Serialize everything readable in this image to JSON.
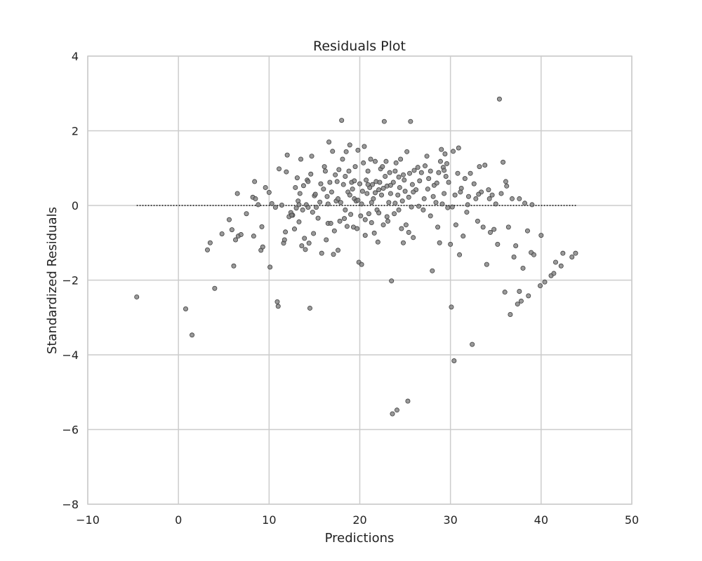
{
  "chart_data": {
    "type": "scatter",
    "title": "Residuals Plot",
    "xlabel": "Predictions",
    "ylabel": "Standardized Residuals",
    "xlim": [
      -10,
      50
    ],
    "ylim": [
      -8,
      4
    ],
    "xticks": [
      -10,
      0,
      10,
      20,
      30,
      40,
      50
    ],
    "yticks": [
      -8,
      -6,
      -4,
      -2,
      0,
      2,
      4
    ],
    "xtick_labels": [
      "−10",
      "0",
      "10",
      "20",
      "30",
      "40",
      "50"
    ],
    "ytick_labels": [
      "−8",
      "−6",
      "−4",
      "−2",
      "0",
      "2",
      "4"
    ],
    "grid": true,
    "point_color": "#808080",
    "point_edge_color": "#404040",
    "reference_line": {
      "y": 0,
      "x_range": [
        -4.6,
        44
      ],
      "style": "dotted",
      "color": "#000000"
    },
    "points": [
      [
        -4.6,
        -2.45
      ],
      [
        0.8,
        -2.77
      ],
      [
        1.5,
        -3.47
      ],
      [
        3.2,
        -1.19
      ],
      [
        3.5,
        -1.0
      ],
      [
        4.0,
        -2.22
      ],
      [
        4.8,
        -0.76
      ],
      [
        5.6,
        -0.38
      ],
      [
        5.9,
        -0.65
      ],
      [
        6.1,
        -1.62
      ],
      [
        6.3,
        -0.92
      ],
      [
        6.5,
        0.32
      ],
      [
        6.6,
        -0.82
      ],
      [
        6.9,
        -0.78
      ],
      [
        7.5,
        -0.22
      ],
      [
        8.2,
        0.22
      ],
      [
        8.3,
        -0.82
      ],
      [
        8.4,
        0.64
      ],
      [
        8.5,
        0.18
      ],
      [
        8.8,
        0.02
      ],
      [
        9.1,
        -1.2
      ],
      [
        9.3,
        -1.11
      ],
      [
        9.2,
        -0.57
      ],
      [
        9.6,
        0.48
      ],
      [
        10.0,
        0.35
      ],
      [
        10.1,
        -1.65
      ],
      [
        10.3,
        0.05
      ],
      [
        10.9,
        -2.58
      ],
      [
        11.0,
        -2.7
      ],
      [
        11.1,
        0.98
      ],
      [
        11.4,
        0.01
      ],
      [
        11.6,
        -1.01
      ],
      [
        11.7,
        -0.92
      ],
      [
        11.8,
        -0.71
      ],
      [
        12.0,
        1.35
      ],
      [
        12.2,
        -0.3
      ],
      [
        12.4,
        -0.19
      ],
      [
        12.6,
        -0.26
      ],
      [
        12.8,
        -0.63
      ],
      [
        12.9,
        0.48
      ],
      [
        13.0,
        -0.07
      ],
      [
        13.1,
        0.74
      ],
      [
        13.2,
        0.12
      ],
      [
        13.3,
        0.02
      ],
      [
        13.4,
        0.32
      ],
      [
        13.5,
        1.24
      ],
      [
        13.6,
        -1.08
      ],
      [
        13.7,
        -0.12
      ],
      [
        13.8,
        0.53
      ],
      [
        13.9,
        -0.88
      ],
      [
        14.0,
        -1.18
      ],
      [
        14.1,
        0.02
      ],
      [
        14.2,
        0.68
      ],
      [
        14.3,
        0.64
      ],
      [
        14.4,
        -1.01
      ],
      [
        14.5,
        -2.75
      ],
      [
        14.6,
        0.84
      ],
      [
        14.7,
        1.32
      ],
      [
        14.8,
        -0.18
      ],
      [
        14.9,
        -0.75
      ],
      [
        15.0,
        0.26
      ],
      [
        15.2,
        -0.05
      ],
      [
        15.4,
        -0.34
      ],
      [
        15.6,
        0.09
      ],
      [
        15.8,
        -1.28
      ],
      [
        16.0,
        0.44
      ],
      [
        16.1,
        1.04
      ],
      [
        16.2,
        0.92
      ],
      [
        16.3,
        -0.92
      ],
      [
        16.4,
        0.24
      ],
      [
        16.5,
        -0.48
      ],
      [
        16.6,
        1.7
      ],
      [
        16.7,
        0.62
      ],
      [
        16.8,
        -0.48
      ],
      [
        16.9,
        0.36
      ],
      [
        17.0,
        1.45
      ],
      [
        17.1,
        -1.31
      ],
      [
        17.2,
        -0.68
      ],
      [
        17.3,
        0.82
      ],
      [
        17.4,
        0.12
      ],
      [
        17.5,
        0.64
      ],
      [
        17.6,
        -1.2
      ],
      [
        17.7,
        0.96
      ],
      [
        17.8,
        -0.42
      ],
      [
        17.9,
        0.08
      ],
      [
        18.0,
        2.28
      ],
      [
        18.1,
        1.24
      ],
      [
        18.2,
        0.56
      ],
      [
        18.3,
        -0.35
      ],
      [
        18.4,
        0.78
      ],
      [
        18.5,
        1.44
      ],
      [
        18.6,
        -0.56
      ],
      [
        18.7,
        0.36
      ],
      [
        18.8,
        0.92
      ],
      [
        18.9,
        1.62
      ],
      [
        19.0,
        -0.24
      ],
      [
        19.1,
        0.62
      ],
      [
        19.2,
        0.44
      ],
      [
        19.3,
        -0.58
      ],
      [
        19.4,
        0.18
      ],
      [
        19.5,
        1.04
      ],
      [
        19.6,
        0.12
      ],
      [
        19.7,
        -0.62
      ],
      [
        19.8,
        1.48
      ],
      [
        19.9,
        -1.52
      ],
      [
        20.0,
        0.58
      ],
      [
        20.1,
        -0.28
      ],
      [
        20.2,
        -1.58
      ],
      [
        20.3,
        0.38
      ],
      [
        20.4,
        1.14
      ],
      [
        20.5,
        1.58
      ],
      [
        20.6,
        -0.8
      ],
      [
        20.7,
        0.68
      ],
      [
        20.8,
        0.32
      ],
      [
        20.9,
        0.92
      ],
      [
        21.0,
        -0.22
      ],
      [
        21.1,
        0.48
      ],
      [
        21.2,
        1.24
      ],
      [
        21.3,
        -0.46
      ],
      [
        21.4,
        0.56
      ],
      [
        21.5,
        0.18
      ],
      [
        21.6,
        -0.74
      ],
      [
        21.7,
        1.18
      ],
      [
        21.8,
        0.64
      ],
      [
        21.9,
        -0.12
      ],
      [
        22.0,
        -0.98
      ],
      [
        22.1,
        0.42
      ],
      [
        22.2,
        0.62
      ],
      [
        22.3,
        0.98
      ],
      [
        22.4,
        0.28
      ],
      [
        22.5,
        1.04
      ],
      [
        22.6,
        -0.52
      ],
      [
        22.7,
        2.25
      ],
      [
        22.8,
        0.78
      ],
      [
        22.9,
        1.18
      ],
      [
        23.0,
        0.52
      ],
      [
        23.1,
        -0.42
      ],
      [
        23.2,
        0.08
      ],
      [
        23.3,
        0.88
      ],
      [
        23.4,
        0.32
      ],
      [
        23.5,
        -2.02
      ],
      [
        23.6,
        -5.58
      ],
      [
        23.7,
        0.62
      ],
      [
        23.8,
        -0.22
      ],
      [
        23.9,
        0.92
      ],
      [
        24.0,
        1.14
      ],
      [
        24.1,
        -5.48
      ],
      [
        24.2,
        0.28
      ],
      [
        24.3,
        0.76
      ],
      [
        24.4,
        0.48
      ],
      [
        24.5,
        1.24
      ],
      [
        24.6,
        -0.62
      ],
      [
        24.7,
        0.12
      ],
      [
        24.8,
        -1.0
      ],
      [
        24.9,
        0.68
      ],
      [
        25.0,
        0.38
      ],
      [
        25.1,
        -0.52
      ],
      [
        25.2,
        1.44
      ],
      [
        25.3,
        -5.24
      ],
      [
        25.4,
        -0.72
      ],
      [
        25.5,
        0.86
      ],
      [
        25.6,
        2.25
      ],
      [
        25.7,
        -0.04
      ],
      [
        25.8,
        0.56
      ],
      [
        25.9,
        -0.86
      ],
      [
        26.0,
        0.94
      ],
      [
        26.2,
        0.42
      ],
      [
        26.4,
        1.02
      ],
      [
        26.6,
        0.66
      ],
      [
        26.8,
        0.88
      ],
      [
        27.0,
        -0.12
      ],
      [
        27.2,
        1.06
      ],
      [
        27.4,
        1.32
      ],
      [
        27.5,
        0.44
      ],
      [
        27.6,
        0.72
      ],
      [
        27.8,
        0.92
      ],
      [
        28.0,
        -1.75
      ],
      [
        28.1,
        0.24
      ],
      [
        28.2,
        0.54
      ],
      [
        28.4,
        0.08
      ],
      [
        28.6,
        -0.58
      ],
      [
        28.7,
        0.88
      ],
      [
        28.8,
        -1.0
      ],
      [
        28.9,
        1.18
      ],
      [
        29.0,
        1.5
      ],
      [
        29.1,
        0.04
      ],
      [
        29.2,
        1.02
      ],
      [
        29.3,
        0.32
      ],
      [
        29.4,
        1.38
      ],
      [
        29.5,
        0.78
      ],
      [
        29.6,
        1.12
      ],
      [
        29.7,
        -0.06
      ],
      [
        29.8,
        0.62
      ],
      [
        30.0,
        -1.04
      ],
      [
        30.1,
        -2.72
      ],
      [
        30.3,
        1.45
      ],
      [
        30.4,
        -4.16
      ],
      [
        30.5,
        0.28
      ],
      [
        30.6,
        -0.52
      ],
      [
        30.8,
        0.86
      ],
      [
        30.9,
        1.54
      ],
      [
        31.0,
        -1.32
      ],
      [
        31.2,
        0.46
      ],
      [
        31.4,
        -0.82
      ],
      [
        31.6,
        0.72
      ],
      [
        31.8,
        -0.18
      ],
      [
        32.0,
        0.24
      ],
      [
        32.2,
        0.86
      ],
      [
        32.4,
        -3.72
      ],
      [
        32.6,
        0.58
      ],
      [
        32.8,
        0.18
      ],
      [
        33.0,
        -0.42
      ],
      [
        33.2,
        1.04
      ],
      [
        33.4,
        0.36
      ],
      [
        33.6,
        -0.58
      ],
      [
        33.8,
        1.08
      ],
      [
        34.0,
        -1.58
      ],
      [
        34.2,
        0.42
      ],
      [
        34.4,
        -0.72
      ],
      [
        34.6,
        0.28
      ],
      [
        34.8,
        -0.64
      ],
      [
        35.0,
        0.04
      ],
      [
        35.2,
        -1.04
      ],
      [
        35.4,
        2.85
      ],
      [
        35.6,
        0.32
      ],
      [
        35.8,
        1.16
      ],
      [
        36.0,
        -2.32
      ],
      [
        36.2,
        0.52
      ],
      [
        36.4,
        -0.58
      ],
      [
        36.6,
        -2.92
      ],
      [
        36.8,
        0.18
      ],
      [
        37.0,
        -1.38
      ],
      [
        37.2,
        -1.08
      ],
      [
        37.4,
        -2.64
      ],
      [
        37.6,
        -2.3
      ],
      [
        37.8,
        -2.56
      ],
      [
        38.0,
        -1.68
      ],
      [
        38.2,
        0.06
      ],
      [
        38.5,
        -0.68
      ],
      [
        38.6,
        -2.42
      ],
      [
        38.9,
        -1.26
      ],
      [
        39.2,
        -1.32
      ],
      [
        39.9,
        -2.15
      ],
      [
        40.0,
        -0.8
      ],
      [
        40.4,
        -2.05
      ],
      [
        41.1,
        -1.88
      ],
      [
        41.4,
        -1.82
      ],
      [
        41.6,
        -1.52
      ],
      [
        42.2,
        -1.62
      ],
      [
        42.4,
        -1.28
      ],
      [
        43.4,
        -1.38
      ],
      [
        43.8,
        -1.28
      ],
      [
        10.7,
        -0.05
      ],
      [
        11.9,
        0.9
      ],
      [
        12.5,
        -0.26
      ],
      [
        13.3,
        -0.44
      ],
      [
        14.3,
        -0.05
      ],
      [
        15.1,
        0.3
      ],
      [
        15.7,
        0.58
      ],
      [
        16.5,
        0.04
      ],
      [
        17.6,
        0.18
      ],
      [
        18.4,
        -0.12
      ],
      [
        18.9,
        0.28
      ],
      [
        19.4,
        0.66
      ],
      [
        19.8,
        0.14
      ],
      [
        20.2,
        0.04
      ],
      [
        20.6,
        -0.38
      ],
      [
        20.9,
        0.56
      ],
      [
        21.3,
        0.08
      ],
      [
        21.7,
        0.34
      ],
      [
        22.1,
        -0.2
      ],
      [
        22.6,
        0.46
      ],
      [
        23.0,
        -0.3
      ],
      [
        23.4,
        0.54
      ],
      [
        23.9,
        0.06
      ],
      [
        24.3,
        -0.12
      ],
      [
        24.8,
        0.82
      ],
      [
        25.4,
        0.22
      ],
      [
        25.9,
        0.36
      ],
      [
        26.5,
        -0.02
      ],
      [
        27.1,
        0.18
      ],
      [
        27.8,
        -0.28
      ],
      [
        28.5,
        0.6
      ],
      [
        29.3,
        0.94
      ],
      [
        30.2,
        -0.04
      ],
      [
        31.1,
        0.36
      ],
      [
        31.9,
        0.02
      ],
      [
        33.1,
        0.3
      ],
      [
        34.3,
        0.18
      ],
      [
        36.1,
        0.64
      ],
      [
        37.6,
        0.18
      ],
      [
        39.0,
        0.02
      ]
    ]
  }
}
